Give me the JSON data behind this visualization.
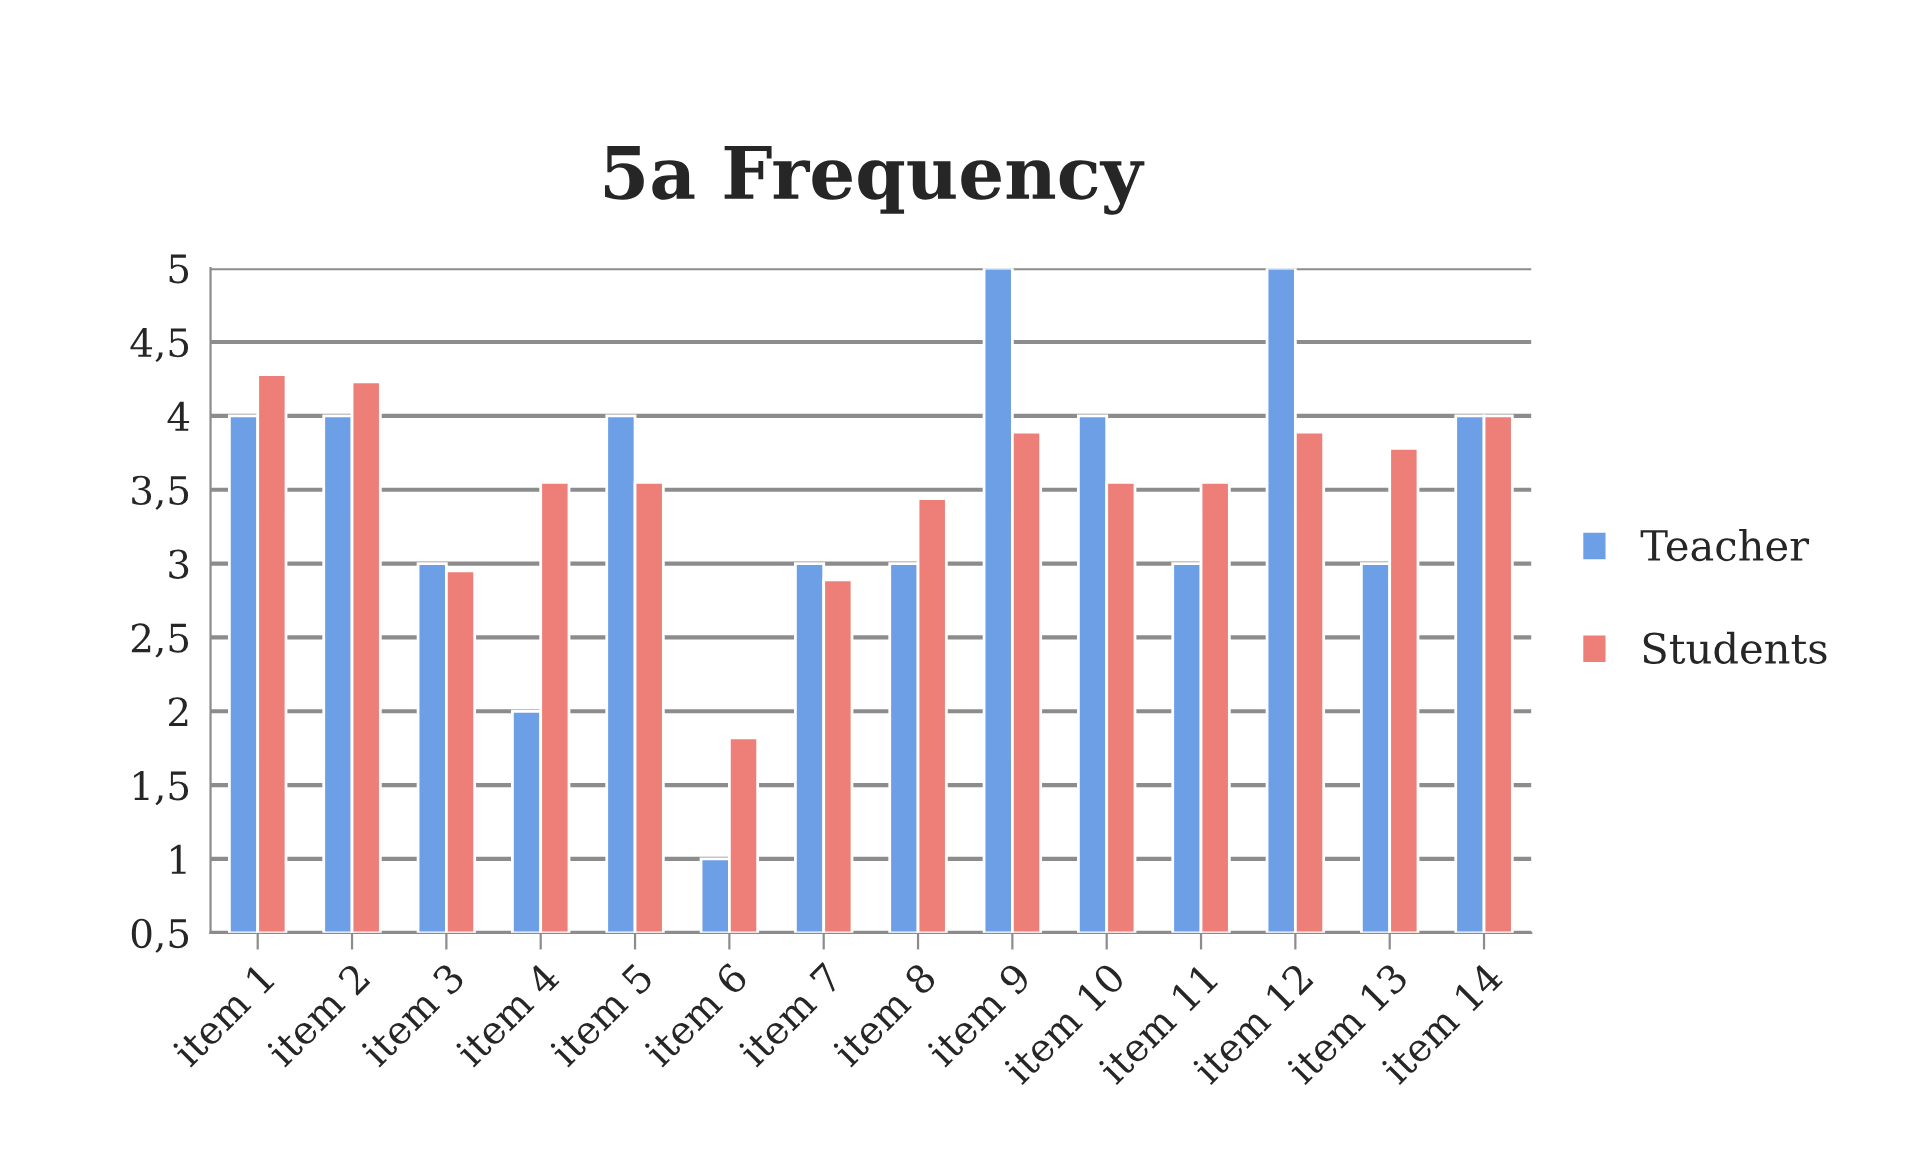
{
  "chart_data": {
    "type": "bar",
    "title": "5a Frequency",
    "categories": [
      "item 1",
      "item 2",
      "item 3",
      "item 4",
      "item 5",
      "item 6",
      "item 7",
      "item 8",
      "item 9",
      "item 10",
      "item 11",
      "item 12",
      "item 13",
      "item 14"
    ],
    "series": [
      {
        "name": "Teacher",
        "color": "#6c9fe6",
        "values": [
          4,
          4,
          3,
          2,
          4,
          1,
          3,
          3,
          5,
          4,
          3,
          5,
          3,
          4
        ]
      },
      {
        "name": "Students",
        "color": "#ee7f78",
        "values": [
          4.28,
          4.23,
          2.95,
          3.55,
          3.55,
          1.82,
          2.89,
          3.44,
          3.89,
          3.55,
          3.55,
          3.89,
          3.78,
          4
        ]
      }
    ],
    "ylim": [
      0.5,
      5
    ],
    "yticks": [
      {
        "value": 0.5,
        "label": "0,5"
      },
      1,
      {
        "value": 1.5,
        "label": "1,5"
      },
      2,
      {
        "value": 2.5,
        "label": "2,5"
      },
      3,
      {
        "value": 3.5,
        "label": "3,5"
      },
      4,
      {
        "value": 4.5,
        "label": "4,5"
      },
      5
    ],
    "grid": "y",
    "legend": "right"
  }
}
